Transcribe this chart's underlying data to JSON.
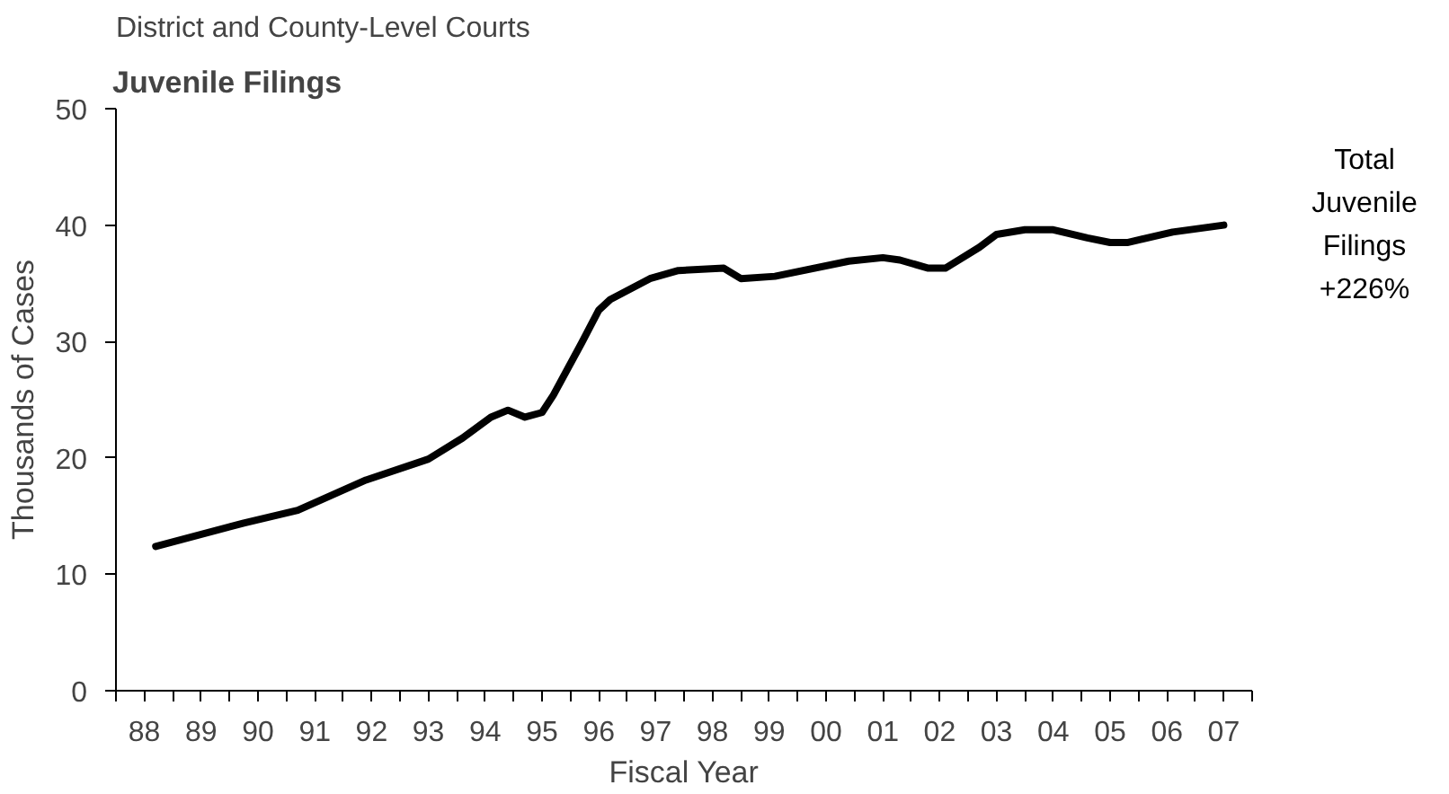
{
  "chart_data": {
    "type": "line",
    "title": "Juvenile Filings",
    "subtitle": "District and County-Level Courts",
    "xlabel": "Fiscal Year",
    "ylabel": "Thousands of Cases",
    "series": [
      {
        "color": "#000000",
        "x": [
          1988.2,
          1989.75,
          1990.7,
          1991.9,
          1993.0,
          1993.6,
          1994.1,
          1994.4,
          1994.7,
          1995.0,
          1995.2,
          1995.7,
          1996.0,
          1996.2,
          1996.9,
          1997.4,
          1998.2,
          1998.5,
          1999.1,
          2000.4,
          2001.0,
          2001.3,
          2001.8,
          2002.1,
          2002.7,
          2003.0,
          2003.5,
          2004.0,
          2004.6,
          2005.0,
          2005.3,
          2006.1,
          2007.0
        ],
        "values": [
          12.4,
          14.4,
          15.5,
          18.1,
          19.9,
          21.7,
          23.5,
          24.1,
          23.5,
          23.9,
          25.4,
          29.9,
          32.7,
          33.6,
          35.4,
          36.1,
          36.3,
          35.4,
          35.6,
          36.9,
          37.2,
          37.0,
          36.3,
          36.3,
          38.1,
          39.2,
          39.6,
          39.6,
          38.9,
          38.5,
          38.5,
          39.4,
          40.0
        ]
      }
    ],
    "xlim": [
      1987.5,
      2007.5
    ],
    "xticks": [
      {
        "value": 1987.5,
        "label": null
      },
      {
        "value": 1988,
        "label": "88"
      },
      {
        "value": 1988.5,
        "label": null
      },
      {
        "value": 1989,
        "label": "89"
      },
      {
        "value": 1989.5,
        "label": null
      },
      {
        "value": 1990,
        "label": "90"
      },
      {
        "value": 1990.5,
        "label": null
      },
      {
        "value": 1991,
        "label": "91"
      },
      {
        "value": 1991.5,
        "label": null
      },
      {
        "value": 1992,
        "label": "92"
      },
      {
        "value": 1992.5,
        "label": null
      },
      {
        "value": 1993,
        "label": "93"
      },
      {
        "value": 1993.5,
        "label": null
      },
      {
        "value": 1994,
        "label": "94"
      },
      {
        "value": 1994.5,
        "label": null
      },
      {
        "value": 1995,
        "label": "95"
      },
      {
        "value": 1995.5,
        "label": null
      },
      {
        "value": 1996,
        "label": "96"
      },
      {
        "value": 1996.5,
        "label": null
      },
      {
        "value": 1997,
        "label": "97"
      },
      {
        "value": 1997.5,
        "label": null
      },
      {
        "value": 1998,
        "label": "98"
      },
      {
        "value": 1998.5,
        "label": null
      },
      {
        "value": 1999,
        "label": "99"
      },
      {
        "value": 1999.5,
        "label": null
      },
      {
        "value": 2000,
        "label": "00"
      },
      {
        "value": 2000.5,
        "label": null
      },
      {
        "value": 2001,
        "label": "01"
      },
      {
        "value": 2001.5,
        "label": null
      },
      {
        "value": 2002,
        "label": "02"
      },
      {
        "value": 2002.5,
        "label": null
      },
      {
        "value": 2003,
        "label": "03"
      },
      {
        "value": 2003.5,
        "label": null
      },
      {
        "value": 2004,
        "label": "04"
      },
      {
        "value": 2004.5,
        "label": null
      },
      {
        "value": 2005,
        "label": "05"
      },
      {
        "value": 2005.5,
        "label": null
      },
      {
        "value": 2006,
        "label": "06"
      },
      {
        "value": 2006.5,
        "label": null
      },
      {
        "value": 2007,
        "label": "07"
      },
      {
        "value": 2007.5,
        "label": null
      }
    ],
    "ylim": [
      0,
      50
    ],
    "yticks": [
      0,
      10,
      20,
      30,
      40,
      50
    ],
    "annotations": [
      "Total Juvenile\nFilings\n+226%"
    ],
    "line_style": "solid"
  }
}
